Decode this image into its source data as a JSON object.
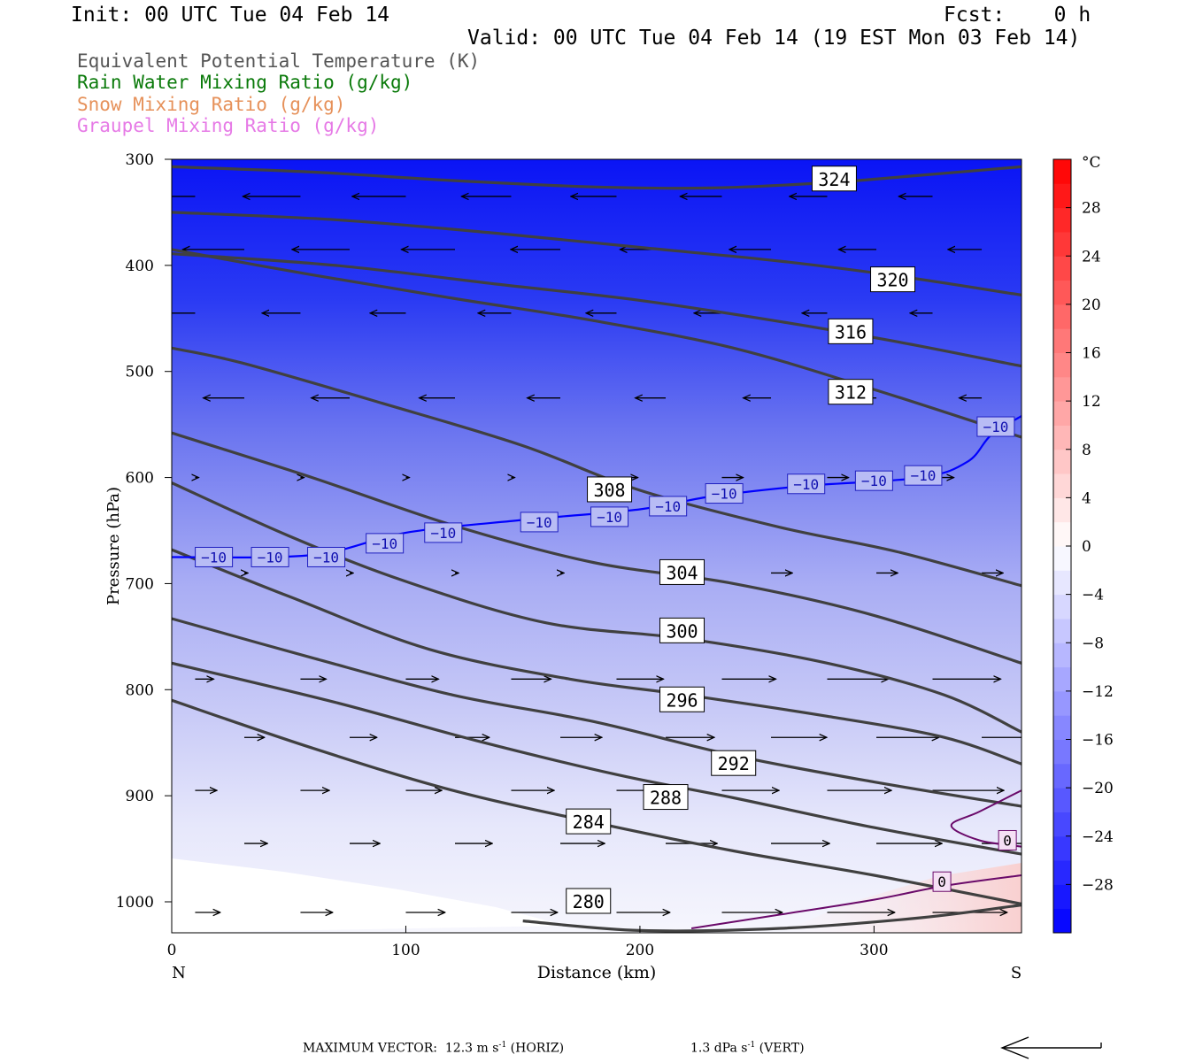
{
  "header": {
    "init": "Init: 00 UTC Tue 04 Feb 14",
    "fcst": "Fcst:    0 h",
    "valid": "Valid: 00 UTC Tue 04 Feb 14 (19 EST Mon 03 Feb 14)"
  },
  "fields": [
    {
      "label": "Equivalent Potential Temperature (K)",
      "color": "#555555"
    },
    {
      "label": "Rain Water Mixing Ratio (g/kg)",
      "color": "#0a7a0a"
    },
    {
      "label": "Snow Mixing Ratio (g/kg)",
      "color": "#e6915a"
    },
    {
      "label": "Graupel Mixing Ratio (g/kg)",
      "color": "#e67ae6"
    }
  ],
  "footer": {
    "max_vector_prefix": "MAXIMUM VECTOR:  12.3 m s",
    "max_vector_sup": "-1",
    "max_vector_suffix": " (HORIZ)",
    "vert_prefix": "1.3 dPa s",
    "vert_sup": "-1",
    "vert_suffix": " (VERT)"
  },
  "chart_data": {
    "type": "contour_cross_section",
    "xlabel": "Distance (km)",
    "ylabel": "Pressure (hPa)",
    "xlim": [
      0,
      363
    ],
    "ylim": [
      1030,
      300
    ],
    "x_ticks": [
      0,
      100,
      200,
      300
    ],
    "y_ticks": [
      300,
      400,
      500,
      600,
      700,
      800,
      900,
      1000
    ],
    "x_end_labels": {
      "left": "N",
      "right": "S"
    },
    "colorbar": {
      "unit": "°C",
      "range": [
        -32,
        32
      ],
      "tick_labels": [
        28,
        24,
        20,
        16,
        12,
        8,
        4,
        0,
        -4,
        -8,
        -12,
        -16,
        -20,
        -24,
        -28
      ],
      "colors": {
        "cold": "#0000ff",
        "zero": "#ffffff",
        "warm": "#ff0000"
      }
    },
    "theta_e_contours": [
      {
        "value": 324,
        "points": [
          [
            0,
            307
          ],
          [
            60,
            312
          ],
          [
            120,
            320
          ],
          [
            180,
            326
          ],
          [
            230,
            327
          ],
          [
            280,
            322
          ],
          [
            320,
            315
          ],
          [
            363,
            307
          ]
        ],
        "label_at": [
          283,
          319
        ]
      },
      {
        "value": 320,
        "points": [
          [
            0,
            350
          ],
          [
            70,
            357
          ],
          [
            140,
            370
          ],
          [
            200,
            383
          ],
          [
            260,
            396
          ],
          [
            310,
            410
          ],
          [
            363,
            428
          ]
        ],
        "label_at": [
          308,
          414
        ]
      },
      {
        "value": 316,
        "points": [
          [
            0,
            389
          ],
          [
            70,
            400
          ],
          [
            140,
            418
          ],
          [
            200,
            433
          ],
          [
            260,
            453
          ],
          [
            310,
            472
          ],
          [
            363,
            495
          ]
        ],
        "label_at": [
          290,
          463
        ]
      },
      {
        "value": 312,
        "points": [
          [
            0,
            385
          ],
          [
            60,
            409
          ],
          [
            120,
            431
          ],
          [
            180,
            452
          ],
          [
            240,
            478
          ],
          [
            300,
            517
          ],
          [
            363,
            562
          ]
        ],
        "label_at": [
          290,
          520
        ]
      },
      {
        "value": 308,
        "points": [
          [
            0,
            478
          ],
          [
            30,
            492
          ],
          [
            90,
            530
          ],
          [
            150,
            570
          ],
          [
            200,
            612
          ],
          [
            260,
            647
          ],
          [
            310,
            670
          ],
          [
            363,
            702
          ]
        ],
        "label_at": [
          187,
          612
        ]
      },
      {
        "value": 304,
        "points": [
          [
            0,
            558
          ],
          [
            60,
            600
          ],
          [
            120,
            645
          ],
          [
            180,
            680
          ],
          [
            240,
            700
          ],
          [
            300,
            730
          ],
          [
            363,
            775
          ]
        ],
        "label_at": [
          218,
          690
        ]
      },
      {
        "value": 300,
        "points": [
          [
            0,
            605
          ],
          [
            50,
            655
          ],
          [
            100,
            698
          ],
          [
            160,
            737
          ],
          [
            220,
            752
          ],
          [
            280,
            775
          ],
          [
            330,
            805
          ],
          [
            363,
            840
          ]
        ],
        "label_at": [
          218,
          745
        ]
      },
      {
        "value": 296,
        "points": [
          [
            0,
            668
          ],
          [
            50,
            712
          ],
          [
            110,
            762
          ],
          [
            170,
            790
          ],
          [
            220,
            805
          ],
          [
            280,
            825
          ],
          [
            330,
            845
          ],
          [
            363,
            870
          ]
        ],
        "label_at": [
          218,
          810
        ]
      },
      {
        "value": 292,
        "points": [
          [
            0,
            733
          ],
          [
            60,
            770
          ],
          [
            120,
            805
          ],
          [
            180,
            830
          ],
          [
            240,
            862
          ],
          [
            300,
            887
          ],
          [
            363,
            910
          ]
        ],
        "label_at": [
          240,
          870
        ]
      },
      {
        "value": 288,
        "points": [
          [
            0,
            775
          ],
          [
            70,
            812
          ],
          [
            130,
            848
          ],
          [
            190,
            880
          ],
          [
            240,
            902
          ],
          [
            300,
            930
          ],
          [
            363,
            955
          ]
        ],
        "label_at": [
          211,
          902
        ]
      },
      {
        "value": 284,
        "points": [
          [
            0,
            810
          ],
          [
            60,
            855
          ],
          [
            120,
            895
          ],
          [
            180,
            925
          ],
          [
            240,
            952
          ],
          [
            300,
            975
          ],
          [
            363,
            1002
          ]
        ],
        "label_at": [
          178,
          925
        ]
      },
      {
        "value": 280,
        "points": [
          [
            150,
            1018
          ],
          [
            200,
            1027
          ],
          [
            260,
            1025
          ],
          [
            320,
            1015
          ],
          [
            363,
            1003
          ]
        ],
        "label_at": [
          178,
          1000
        ]
      }
    ],
    "isotherm_minus10": {
      "value": -10,
      "points": [
        [
          0,
          675
        ],
        [
          60,
          673
        ],
        [
          100,
          652
        ],
        [
          150,
          640
        ],
        [
          200,
          630
        ],
        [
          230,
          618
        ],
        [
          270,
          608
        ],
        [
          320,
          600
        ],
        [
          340,
          585
        ],
        [
          350,
          560
        ],
        [
          363,
          542
        ]
      ],
      "labels_at": [
        [
          18,
          675
        ],
        [
          42,
          675
        ],
        [
          66,
          675
        ],
        [
          91,
          662
        ],
        [
          116,
          652
        ],
        [
          157,
          642
        ],
        [
          187,
          637
        ],
        [
          212,
          627
        ],
        [
          236,
          615
        ],
        [
          271,
          606
        ],
        [
          300,
          603
        ],
        [
          321,
          598
        ],
        [
          352,
          552
        ]
      ]
    },
    "isotherm_zero": {
      "value": 0,
      "labels_at": [
        [
          329,
          981
        ],
        [
          357,
          942
        ]
      ]
    },
    "wind_vectors": {
      "levels_hpa": [
        335,
        385,
        445,
        525,
        600,
        690,
        790,
        845,
        895,
        945,
        1010
      ],
      "note": "horizontal wind arrows; westward (leftward) aloft, eastward near surface"
    }
  }
}
